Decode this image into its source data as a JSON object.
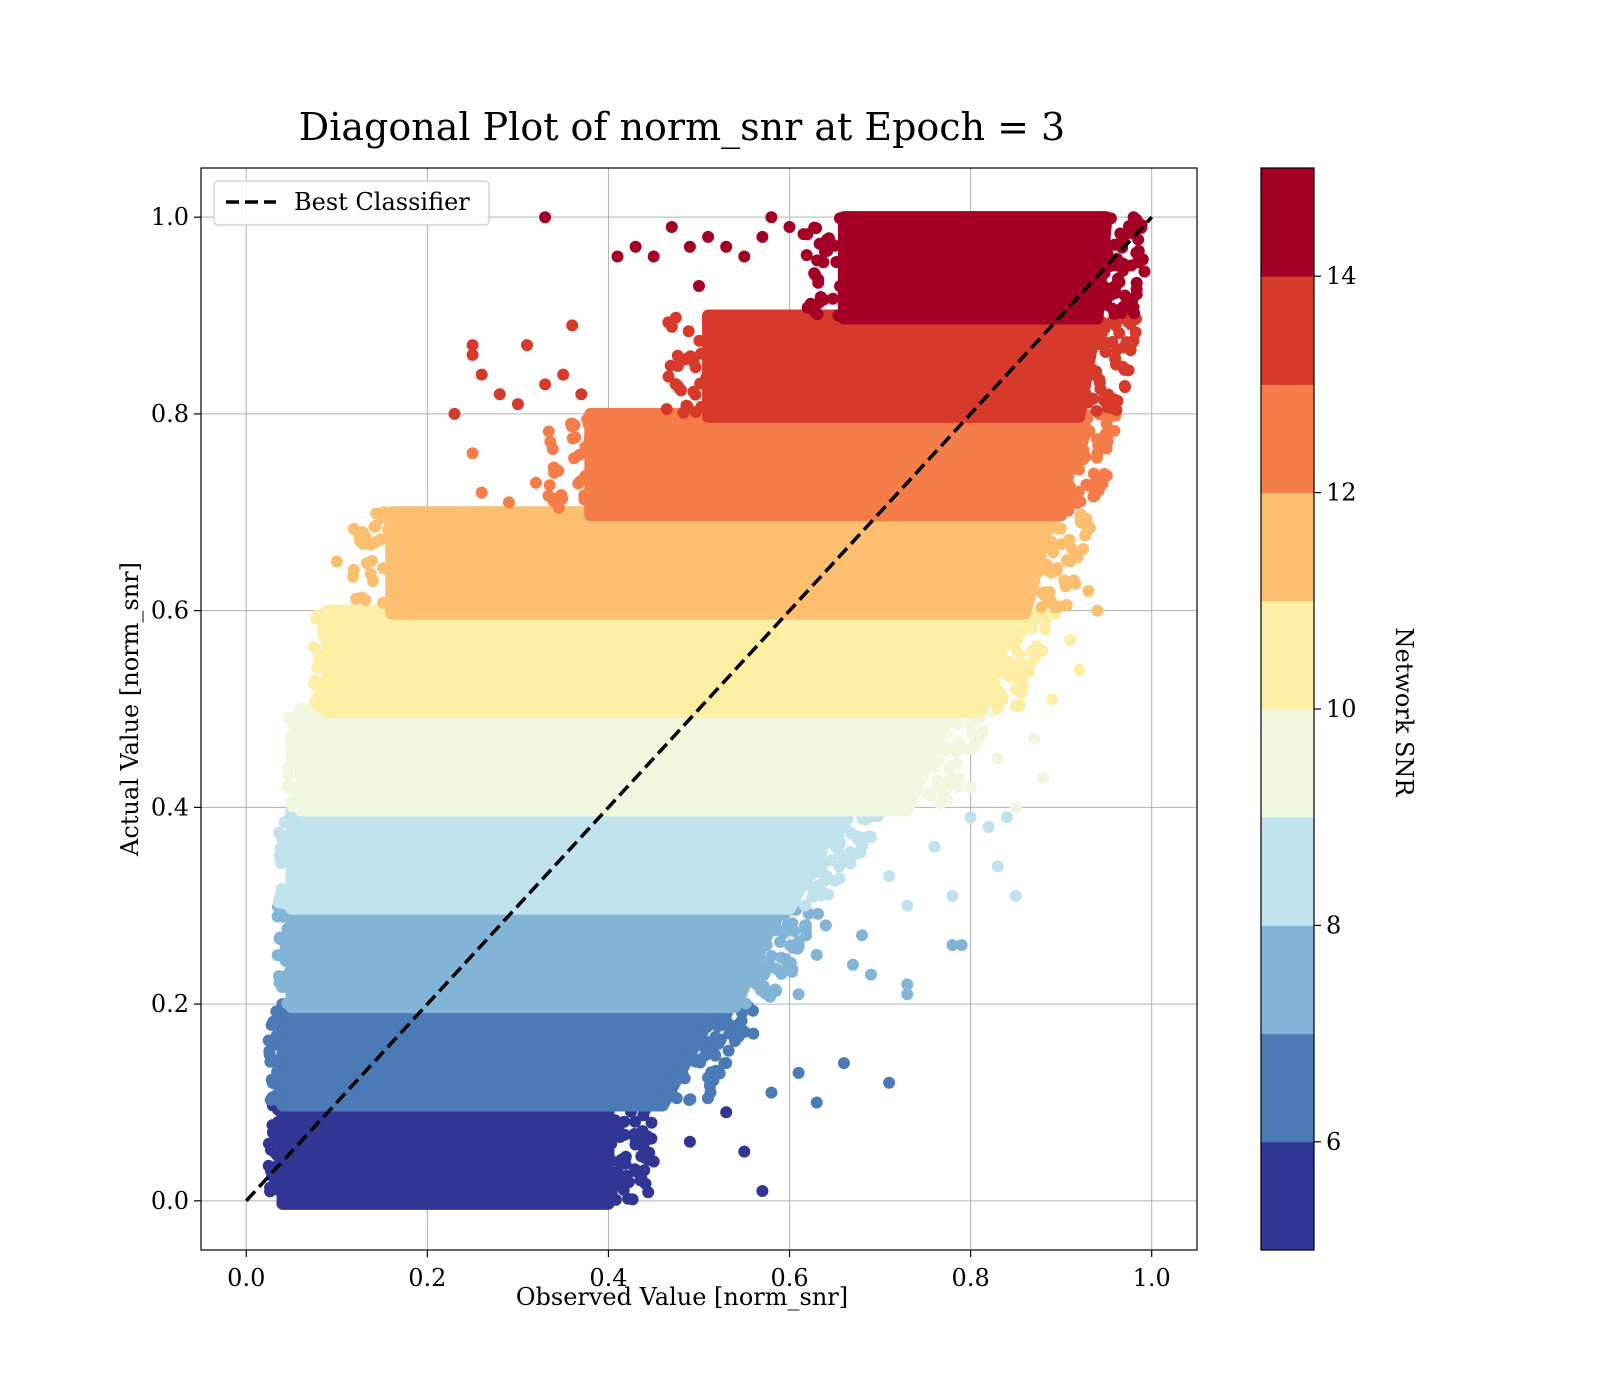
{
  "chart_data": {
    "type": "scatter",
    "title": "Diagonal Plot of norm_snr at Epoch = 3",
    "xlabel": "Observed Value [norm_snr]",
    "ylabel": "Actual Value [norm_snr]",
    "xlim": [
      -0.05,
      1.05
    ],
    "ylim": [
      -0.05,
      1.05
    ],
    "x_ticks": [
      "0.0",
      "0.2",
      "0.4",
      "0.6",
      "0.8",
      "1.0"
    ],
    "y_ticks": [
      "0.0",
      "0.2",
      "0.4",
      "0.6",
      "0.8",
      "1.0"
    ],
    "grid": true,
    "legend": {
      "placement": "top-left",
      "entries": [
        {
          "label": "Best Classifier",
          "style": "dashed",
          "color": "#000000"
        }
      ]
    },
    "reference_line": {
      "label": "Best Classifier",
      "x": [
        0.0,
        1.0
      ],
      "y": [
        0.0,
        1.0
      ]
    },
    "colorbar": {
      "label": "Network SNR",
      "range": [
        5,
        15
      ],
      "ticks": [
        "6",
        "8",
        "10",
        "12",
        "14"
      ],
      "colors": [
        "#313695",
        "#4a7bb6",
        "#81b4d6",
        "#bfe2ed",
        "#eff8df",
        "#feeea3",
        "#fcbf6f",
        "#f47d4a",
        "#d73a2b",
        "#a40026"
      ]
    },
    "bands": [
      {
        "snr": [
          5,
          6
        ],
        "y": [
          0.0,
          0.1
        ],
        "color": "#313695",
        "x_left": 0.04,
        "x_right_bottom": 0.4,
        "x_right_top": 0.4,
        "outliers": [
          [
            0.57,
            0.01
          ],
          [
            0.55,
            0.05
          ],
          [
            0.53,
            0.09
          ],
          [
            0.49,
            0.06
          ],
          [
            0.45,
            0.04
          ],
          [
            0.43,
            0.03
          ],
          [
            0.41,
            0.02
          ],
          [
            0.39,
            0.01
          ]
        ]
      },
      {
        "snr": [
          6,
          7
        ],
        "y": [
          0.1,
          0.2
        ],
        "color": "#4a7bb6",
        "x_left": 0.04,
        "x_right_bottom": 0.46,
        "x_right_top": 0.52,
        "outliers": [
          [
            0.71,
            0.12
          ],
          [
            0.66,
            0.14
          ],
          [
            0.63,
            0.1
          ],
          [
            0.61,
            0.13
          ],
          [
            0.58,
            0.11
          ],
          [
            0.56,
            0.17
          ],
          [
            0.53,
            0.14
          ],
          [
            0.5,
            0.16
          ]
        ]
      },
      {
        "snr": [
          7,
          8
        ],
        "y": [
          0.2,
          0.3
        ],
        "color": "#81b4d6",
        "x_left": 0.05,
        "x_right_bottom": 0.54,
        "x_right_top": 0.59,
        "outliers": [
          [
            0.79,
            0.26
          ],
          [
            0.78,
            0.26
          ],
          [
            0.73,
            0.21
          ],
          [
            0.73,
            0.22
          ],
          [
            0.69,
            0.23
          ],
          [
            0.68,
            0.27
          ],
          [
            0.67,
            0.24
          ],
          [
            0.63,
            0.25
          ],
          [
            0.61,
            0.21
          ],
          [
            0.64,
            0.28
          ]
        ]
      },
      {
        "snr": [
          8,
          9
        ],
        "y": [
          0.3,
          0.4
        ],
        "color": "#bfe2ed",
        "x_left": 0.05,
        "x_right_bottom": 0.6,
        "x_right_top": 0.66,
        "outliers": [
          [
            0.85,
            0.31
          ],
          [
            0.84,
            0.39
          ],
          [
            0.83,
            0.34
          ],
          [
            0.82,
            0.38
          ],
          [
            0.8,
            0.39
          ],
          [
            0.78,
            0.31
          ],
          [
            0.76,
            0.36
          ],
          [
            0.73,
            0.3
          ],
          [
            0.71,
            0.33
          ],
          [
            0.69,
            0.37
          ]
        ]
      },
      {
        "snr": [
          9,
          10
        ],
        "y": [
          0.4,
          0.5
        ],
        "color": "#eff8df",
        "x_left": 0.06,
        "x_right_bottom": 0.73,
        "x_right_top": 0.78,
        "outliers": [
          [
            0.88,
            0.43
          ],
          [
            0.87,
            0.47
          ],
          [
            0.85,
            0.4
          ],
          [
            0.83,
            0.45
          ],
          [
            0.81,
            0.49
          ],
          [
            0.8,
            0.42
          ],
          [
            0.07,
            0.49
          ],
          [
            0.08,
            0.45
          ],
          [
            0.06,
            0.42
          ]
        ]
      },
      {
        "snr": [
          10,
          11
        ],
        "y": [
          0.5,
          0.6
        ],
        "color": "#feeea3",
        "x_left": 0.09,
        "x_right_bottom": 0.81,
        "x_right_top": 0.85,
        "outliers": [
          [
            0.92,
            0.54
          ],
          [
            0.91,
            0.57
          ],
          [
            0.89,
            0.51
          ],
          [
            0.87,
            0.55
          ],
          [
            0.85,
            0.52
          ],
          [
            0.1,
            0.53
          ],
          [
            0.11,
            0.58
          ],
          [
            0.13,
            0.56
          ]
        ]
      },
      {
        "snr": [
          11,
          12
        ],
        "y": [
          0.6,
          0.7
        ],
        "color": "#fcbf6f",
        "x_left": 0.16,
        "x_right_bottom": 0.86,
        "x_right_top": 0.89,
        "outliers": [
          [
            0.94,
            0.6
          ],
          [
            0.93,
            0.62
          ],
          [
            0.91,
            0.65
          ],
          [
            0.1,
            0.65
          ],
          [
            0.14,
            0.63
          ],
          [
            0.17,
            0.65
          ],
          [
            0.19,
            0.66
          ],
          [
            0.22,
            0.68
          ]
        ]
      },
      {
        "snr": [
          12,
          13
        ],
        "y": [
          0.7,
          0.8
        ],
        "color": "#f47d4a",
        "x_left": 0.38,
        "x_right_bottom": 0.9,
        "x_right_top": 0.92,
        "outliers": [
          [
            0.95,
            0.79
          ],
          [
            0.94,
            0.76
          ],
          [
            0.25,
            0.76
          ],
          [
            0.26,
            0.72
          ],
          [
            0.29,
            0.71
          ],
          [
            0.32,
            0.73
          ],
          [
            0.34,
            0.74
          ],
          [
            0.36,
            0.79
          ]
        ]
      },
      {
        "snr": [
          13,
          14
        ],
        "y": [
          0.8,
          0.9
        ],
        "color": "#d73a2b",
        "x_left": 0.51,
        "x_right_bottom": 0.92,
        "x_right_top": 0.94,
        "outliers": [
          [
            0.96,
            0.89
          ],
          [
            0.23,
            0.8
          ],
          [
            0.25,
            0.86
          ],
          [
            0.25,
            0.87
          ],
          [
            0.26,
            0.84
          ],
          [
            0.28,
            0.82
          ],
          [
            0.3,
            0.81
          ],
          [
            0.31,
            0.87
          ],
          [
            0.33,
            0.83
          ],
          [
            0.35,
            0.84
          ],
          [
            0.37,
            0.82
          ],
          [
            0.36,
            0.89
          ]
        ]
      },
      {
        "snr": [
          14,
          15
        ],
        "y": [
          0.9,
          1.0
        ],
        "color": "#a40026",
        "x_left": 0.66,
        "x_right_bottom": 0.94,
        "x_right_top": 0.95,
        "outliers": [
          [
            0.97,
            0.91
          ],
          [
            0.98,
            1.0
          ],
          [
            0.33,
            1.0
          ],
          [
            0.41,
            0.96
          ],
          [
            0.43,
            0.97
          ],
          [
            0.45,
            0.96
          ],
          [
            0.47,
            0.99
          ],
          [
            0.49,
            0.97
          ],
          [
            0.5,
            0.93
          ],
          [
            0.51,
            0.98
          ],
          [
            0.53,
            0.97
          ],
          [
            0.55,
            0.96
          ],
          [
            0.57,
            0.98
          ],
          [
            0.58,
            1.0
          ],
          [
            0.6,
            0.99
          ]
        ]
      }
    ]
  }
}
